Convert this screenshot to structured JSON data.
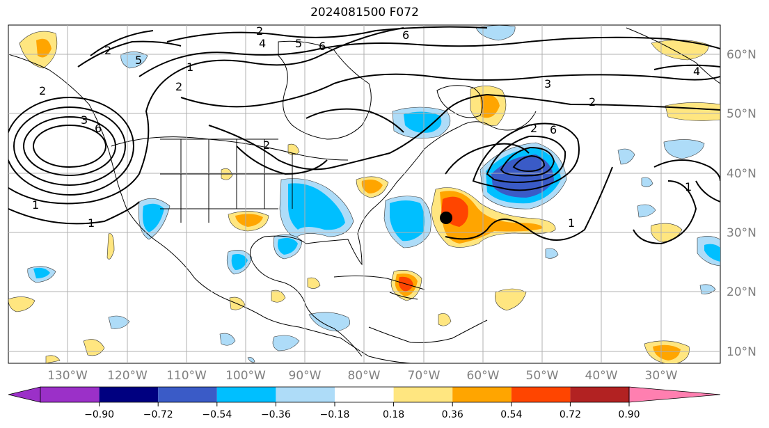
{
  "title": "2024081500 F072",
  "lon_labels": [
    "130°W",
    "120°W",
    "110°W",
    "100°W",
    "90°W",
    "80°W",
    "70°W",
    "60°W",
    "50°W",
    "40°W",
    "30°W"
  ],
  "lat_labels": [
    "60°N",
    "50°N",
    "40°N",
    "30°N",
    "20°N",
    "10°N"
  ],
  "contour_labels": [
    "2",
    "4",
    "5",
    "6",
    "6",
    "2",
    "1",
    "2",
    "2",
    "3",
    "6",
    "5",
    "2",
    "1",
    "1",
    "2",
    "3",
    "2",
    "6",
    "4",
    "1",
    "1"
  ],
  "colorbar": {
    "ticks": [
      "−0.90",
      "−0.72",
      "−0.54",
      "−0.36",
      "−0.18",
      "0.18",
      "0.36",
      "0.54",
      "0.72",
      "0.90"
    ],
    "colors": [
      "#9b30c8",
      "#000080",
      "#3a5bc7",
      "#00bfff",
      "#aedcf8",
      "#ffffff",
      "#ffe680",
      "#ffa500",
      "#ff4500",
      "#b22222",
      "#ff7fb0"
    ]
  },
  "colors": {
    "land_line": "#000000",
    "grid": "#b0b0b0",
    "marker": "#000000"
  }
}
